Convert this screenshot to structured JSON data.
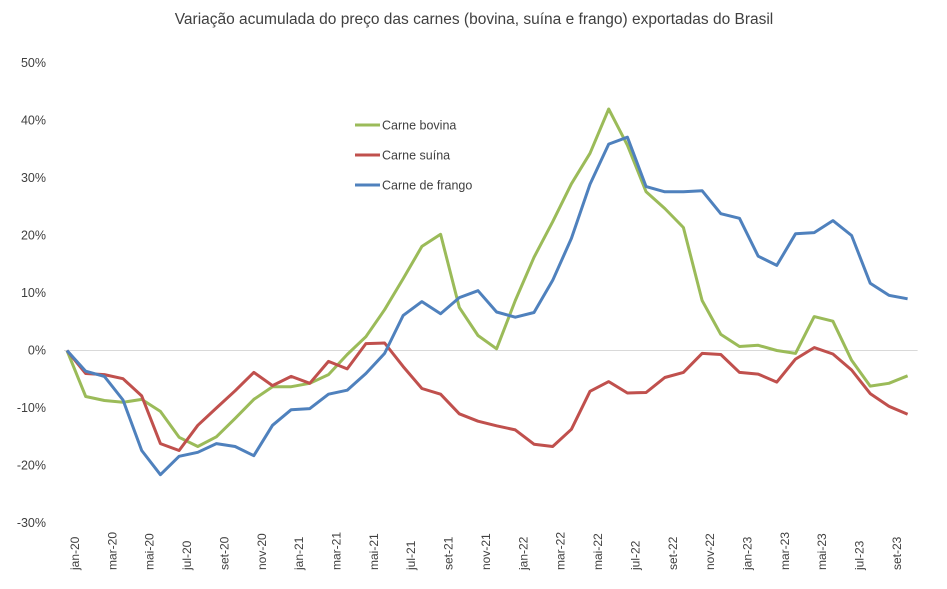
{
  "chart_data": {
    "type": "line",
    "title": "Variação acumulada do preço das carnes (bovina, suína e frango) exportadas do Brasil",
    "xlabel": "",
    "ylabel": "",
    "ylim": [
      -30,
      50
    ],
    "yticks": [
      -30,
      -20,
      -10,
      0,
      10,
      20,
      30,
      40,
      50
    ],
    "ytick_labels": [
      "-30%",
      "-20%",
      "-10%",
      "0%",
      "10%",
      "20%",
      "30%",
      "40%",
      "50%"
    ],
    "grid": false,
    "legend_position": "top-center",
    "categories": [
      "jan-20",
      "fev-20",
      "mar-20",
      "abr-20",
      "mai-20",
      "jun-20",
      "jul-20",
      "ago-20",
      "set-20",
      "out-20",
      "nov-20",
      "dez-20",
      "jan-21",
      "fev-21",
      "mar-21",
      "abr-21",
      "mai-21",
      "jun-21",
      "jul-21",
      "ago-21",
      "set-21",
      "out-21",
      "nov-21",
      "dez-21",
      "jan-22",
      "fev-22",
      "mar-22",
      "abr-22",
      "mai-22",
      "jun-22",
      "jul-22",
      "ago-22",
      "set-22",
      "out-22",
      "nov-22",
      "dez-22",
      "jan-23",
      "fev-23",
      "mar-23",
      "abr-23",
      "mai-23",
      "jun-23",
      "jul-23",
      "ago-23",
      "set-23",
      "out-23"
    ],
    "xtick_labels": [
      "jan-20",
      "mar-20",
      "mai-20",
      "jul-20",
      "set-20",
      "nov-20",
      "jan-21",
      "mar-21",
      "mai-21",
      "jul-21",
      "set-21",
      "nov-21",
      "jan-22",
      "mar-22",
      "mai-22",
      "jul-22",
      "set-22",
      "nov-22",
      "jan-23",
      "mar-23",
      "mai-23",
      "jul-23",
      "set-23"
    ],
    "series": [
      {
        "name": "Carne bovina",
        "color": "#9bbb59",
        "values": [
          0,
          -8,
          -8.7,
          -9,
          -8.5,
          -10.6,
          -15.1,
          -16.7,
          -15,
          -11.8,
          -8.5,
          -6.3,
          -6.3,
          -5.7,
          -4.2,
          -0.7,
          2.4,
          7.1,
          12.5,
          18.1,
          20.2,
          7.5,
          2.6,
          0.3,
          8.7,
          16.2,
          22.4,
          29,
          34.3,
          42,
          35.7,
          27.6,
          24.7,
          21.4,
          8.7,
          2.8,
          0.7,
          0.9,
          0,
          -0.5,
          5.9,
          5.1,
          -1.7,
          -6.2,
          -5.7,
          -4.4
        ]
      },
      {
        "name": "Carne suína",
        "color": "#c0504d",
        "values": [
          0,
          -4,
          -4.2,
          -4.9,
          -7.9,
          -16.2,
          -17.4,
          -13,
          -10,
          -7,
          -3.8,
          -6.1,
          -4.5,
          -5.7,
          -1.9,
          -3.2,
          1.2,
          1.3,
          -2.8,
          -6.6,
          -7.6,
          -11,
          -12.3,
          -13.1,
          -13.8,
          -16.3,
          -16.7,
          -13.7,
          -7.1,
          -5.4,
          -7.4,
          -7.3,
          -4.7,
          -3.8,
          -0.5,
          -0.7,
          -3.8,
          -4.1,
          -5.5,
          -1.5,
          0.5,
          -0.6,
          -3.4,
          -7.5,
          -9.7,
          -11.1
        ]
      },
      {
        "name": "Carne de frango",
        "color": "#4f81bd",
        "values": [
          0,
          -3.6,
          -4.5,
          -8.6,
          -17.4,
          -21.6,
          -18.4,
          -17.7,
          -16.2,
          -16.7,
          -18.3,
          -13,
          -10.3,
          -10.1,
          -7.6,
          -6.9,
          -4,
          -0.5,
          6.1,
          8.5,
          6.4,
          9.2,
          10.4,
          6.7,
          5.8,
          6.6,
          12.2,
          19.5,
          28.9,
          35.9,
          37.1,
          28.5,
          27.6,
          27.6,
          27.8,
          23.8,
          23,
          16.4,
          14.8,
          20.3,
          20.5,
          22.6,
          20,
          11.7,
          9.6,
          9
        ]
      }
    ]
  }
}
